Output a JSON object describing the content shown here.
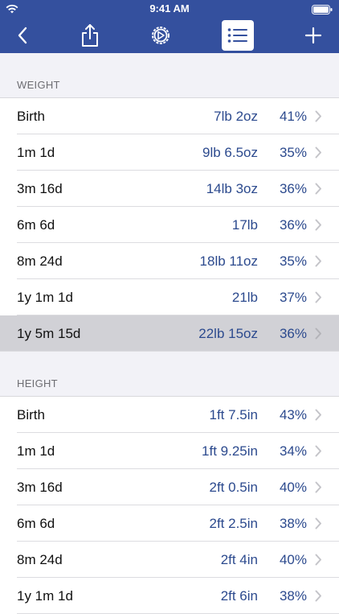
{
  "status": {
    "time": "9:41 AM"
  },
  "nav": {
    "back_icon": "chevron-left-icon",
    "share_icon": "share-icon",
    "settings_icon": "settings-icon",
    "list_icon": "list-icon",
    "add_icon": "plus-icon",
    "bar_color": "#34509e"
  },
  "sections": [
    {
      "title": "WEIGHT",
      "rows": [
        {
          "age": "Birth",
          "value": "7lb 2oz",
          "percentile": "41%"
        },
        {
          "age": "1m 1d",
          "value": "9lb 6.5oz",
          "percentile": "35%"
        },
        {
          "age": "3m 16d",
          "value": "14lb 3oz",
          "percentile": "36%"
        },
        {
          "age": "6m 6d",
          "value": "17lb",
          "percentile": "36%"
        },
        {
          "age": "8m 24d",
          "value": "18lb 11oz",
          "percentile": "35%"
        },
        {
          "age": "1y 1m 1d",
          "value": "21lb",
          "percentile": "37%"
        },
        {
          "age": "1y 5m 15d",
          "value": "22lb 15oz",
          "percentile": "36%"
        }
      ]
    },
    {
      "title": "HEIGHT",
      "rows": [
        {
          "age": "Birth",
          "value": "1ft 7.5in",
          "percentile": "43%"
        },
        {
          "age": "1m 1d",
          "value": "1ft 9.25in",
          "percentile": "34%"
        },
        {
          "age": "3m 16d",
          "value": "2ft 0.5in",
          "percentile": "40%"
        },
        {
          "age": "6m 6d",
          "value": "2ft 2.5in",
          "percentile": "38%"
        },
        {
          "age": "8m 24d",
          "value": "2ft 4in",
          "percentile": "40%"
        },
        {
          "age": "1y 1m 1d",
          "value": "2ft 6in",
          "percentile": "38%"
        }
      ]
    }
  ]
}
